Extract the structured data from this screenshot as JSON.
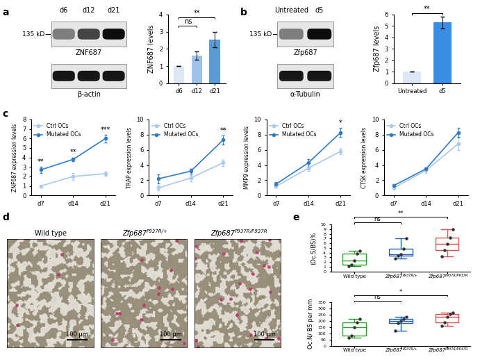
{
  "chart_data": [
    {
      "type": "blot",
      "panel": "a",
      "lanes": [
        "d6",
        "d12",
        "d21"
      ],
      "ladder": "135 kD",
      "bands": [
        "ZNF687",
        "β-actin"
      ]
    },
    {
      "type": "bar",
      "categories": [
        "d6",
        "d12",
        "d21"
      ],
      "values": [
        1,
        1.6,
        2.55
      ],
      "errors": [
        0,
        0.25,
        0.45
      ],
      "colors": [
        "#dbe7f5",
        "#9ec2e8",
        "#5b9bd5"
      ],
      "ylabel": "ZNF687 levels",
      "ylim": [
        0,
        4
      ],
      "yticks": [
        0,
        1,
        2,
        3,
        4
      ],
      "comparisons": [
        {
          "between": [
            0,
            1
          ],
          "label": "ns"
        },
        {
          "between": [
            0,
            2
          ],
          "label": "**"
        }
      ]
    },
    {
      "type": "blot",
      "panel": "b",
      "lanes": [
        "Untreated",
        "d5"
      ],
      "ladder": "135 kD",
      "bands": [
        "Zfp687",
        "α-Tubulin"
      ]
    },
    {
      "type": "bar",
      "categories": [
        "Untreated",
        "d5"
      ],
      "values": [
        1,
        5.3
      ],
      "errors": [
        0,
        0.5
      ],
      "colors": [
        "#dbe7f5",
        "#3a8ee6"
      ],
      "ylabel": "Zfp687 levels",
      "ylim": [
        0,
        6
      ],
      "yticks": [
        0,
        1,
        2,
        3,
        4,
        5,
        6
      ],
      "comparisons": [
        {
          "between": [
            0,
            1
          ],
          "label": "**"
        }
      ]
    },
    {
      "type": "line",
      "panel": "c",
      "categories": [
        "d7",
        "d14",
        "d21"
      ],
      "ylabel": "ZNF687 expression levels",
      "ylim": [
        0,
        8
      ],
      "yticks": [
        0,
        1,
        2,
        3,
        4,
        5,
        6,
        7,
        8
      ],
      "legend": "upper left",
      "series": [
        {
          "name": "Ctrl OCs",
          "color": "#a9c9ea",
          "marker": "o",
          "values": [
            1,
            2,
            2.3
          ],
          "errors": [
            0.05,
            0.4,
            0.2
          ]
        },
        {
          "name": "Mutated OCs",
          "color": "#2f7bc4",
          "marker": "o",
          "values": [
            2.7,
            3.8,
            6
          ],
          "errors": [
            0.3,
            0.2,
            0.4
          ]
        }
      ],
      "significance": [
        "**",
        "**",
        "***"
      ]
    },
    {
      "type": "line",
      "categories": [
        "d7",
        "d14",
        "d21"
      ],
      "ylabel": "TRAP expression levels",
      "ylim": [
        0,
        10
      ],
      "yticks": [
        0,
        2,
        4,
        6,
        8,
        10
      ],
      "legend": "upper left",
      "series": [
        {
          "name": "Ctrl OCs",
          "color": "#a9c9ea",
          "marker": "o",
          "values": [
            1,
            2.3,
            4.3
          ],
          "errors": [
            0.3,
            0.4,
            0.4
          ]
        },
        {
          "name": "Mutated OCs",
          "color": "#2f7bc4",
          "marker": "o",
          "values": [
            2.2,
            3.2,
            7.3
          ],
          "errors": [
            0.6,
            0.3,
            0.6
          ]
        }
      ],
      "significance": [
        null,
        null,
        "**"
      ]
    },
    {
      "type": "line",
      "categories": [
        "d7",
        "d14",
        "d21"
      ],
      "ylabel": "MMP9 expression levels",
      "ylim": [
        0,
        10
      ],
      "yticks": [
        0,
        2,
        4,
        6,
        8,
        10
      ],
      "legend": "upper left",
      "series": [
        {
          "name": "Ctrl OCs",
          "color": "#a9c9ea",
          "marker": "o",
          "values": [
            1.2,
            3.6,
            5.8
          ],
          "errors": [
            0.2,
            0.4,
            0.4
          ]
        },
        {
          "name": "Mutated OCs",
          "color": "#2f7bc4",
          "marker": "o",
          "values": [
            1.5,
            4.3,
            8.3
          ],
          "errors": [
            0.3,
            0.5,
            0.6
          ]
        }
      ],
      "significance": [
        null,
        null,
        "*"
      ]
    },
    {
      "type": "line",
      "categories": [
        "d7",
        "d14",
        "d21"
      ],
      "ylabel": "CTSK expression levels",
      "ylim": [
        0,
        10
      ],
      "yticks": [
        0,
        2,
        4,
        6,
        8,
        10
      ],
      "legend": "upper left",
      "series": [
        {
          "name": "Ctrl OCs",
          "color": "#a9c9ea",
          "marker": "o",
          "values": [
            1.0,
            3.3,
            6.8
          ],
          "errors": [
            0.2,
            0.3,
            0.8
          ]
        },
        {
          "name": "Mutated OCs",
          "color": "#2f7bc4",
          "marker": "o",
          "values": [
            1.3,
            3.5,
            8.3
          ],
          "errors": [
            0.2,
            0.2,
            0.6
          ]
        }
      ],
      "significance": [
        null,
        null,
        null
      ]
    },
    {
      "type": "image",
      "panel": "d",
      "titles": [
        "Wild type",
        {
          "base": "Zfp687",
          "sup": "P937R/+"
        },
        {
          "base": "Zfp687",
          "sup": "P937R/P937R"
        }
      ],
      "scale_bar": "100 μm"
    },
    {
      "type": "box",
      "panel": "e",
      "categories": [
        "Wild type",
        {
          "base": "Zfp687",
          "sup": "P937R/+"
        },
        {
          "base": "Zfp687",
          "sup": "P937R/P937R"
        }
      ],
      "points": [
        [
          1.1,
          1.5,
          2.3,
          3.8,
          4.4
        ],
        [
          2.8,
          3.3,
          3.7,
          4.8,
          7.0
        ],
        [
          3.2,
          4.5,
          5.8,
          7.2,
          9.0
        ]
      ],
      "colors": [
        "#2ca02c",
        "#1f5fbf",
        "#e05050"
      ],
      "ylabel": "(Oc.S/BS)%",
      "ylim": [
        0,
        10
      ],
      "yticks": [
        0,
        1,
        2,
        3,
        4,
        5,
        6,
        7,
        8,
        9,
        10
      ],
      "comparisons": [
        {
          "between": [
            0,
            1
          ],
          "label": "ns"
        },
        {
          "between": [
            0,
            2
          ],
          "label": "**"
        }
      ]
    },
    {
      "type": "box",
      "categories": [
        "Wild type",
        {
          "base": "Zfp687",
          "sup": "P937R/+"
        },
        {
          "base": "Zfp687",
          "sup": "P937R/P937R"
        }
      ],
      "points": [
        [
          65,
          80,
          150,
          190,
          215
        ],
        [
          120,
          180,
          200,
          215,
          235
        ],
        [
          160,
          190,
          230,
          255,
          265
        ]
      ],
      "colors": [
        "#2ca02c",
        "#1f5fbf",
        "#e05050"
      ],
      "ylabel": "Oc.N/ BS per mm",
      "ylim": [
        0,
        350
      ],
      "yticks": [
        0,
        50,
        100,
        150,
        200,
        250,
        300,
        350
      ],
      "comparisons": [
        {
          "between": [
            0,
            1
          ],
          "label": "ns"
        },
        {
          "between": [
            0,
            2
          ],
          "label": "*"
        }
      ]
    }
  ]
}
